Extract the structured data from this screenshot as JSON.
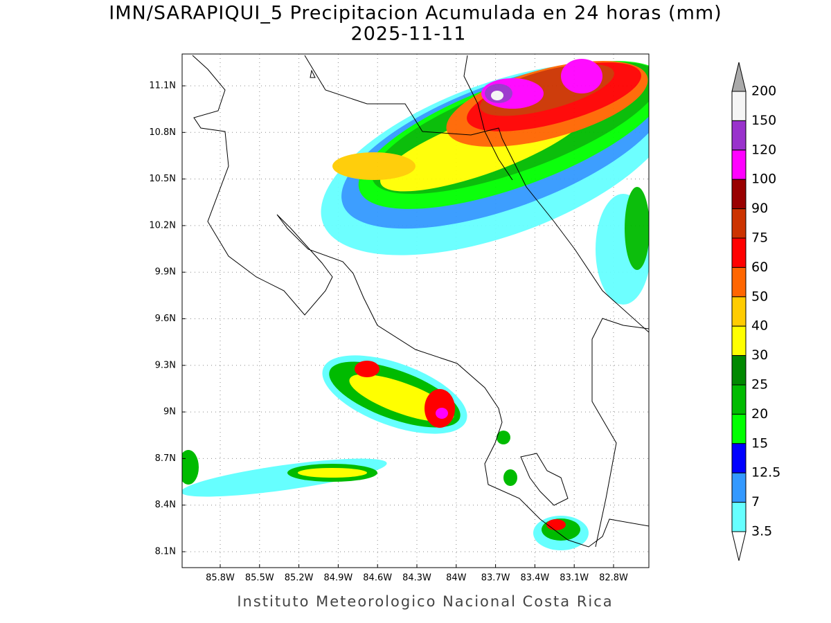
{
  "title": "IMN/SARAPIQUI_5 Precipitacion Acumulada en 24 horas (mm)",
  "subtitle": "2025-11-11",
  "map": {
    "lon_labels": [
      "85.8W",
      "85.5W",
      "85.2W",
      "84.9W",
      "84.6W",
      "84.3W",
      "84W",
      "83.7W",
      "83.4W",
      "83.1W",
      "82.8W"
    ],
    "lat_labels": [
      "11.1N",
      "10.8N",
      "10.5N",
      "10.2N",
      "9.9N",
      "9.6N",
      "9.3N",
      "9N",
      "8.7N",
      "8.4N",
      "8.1N"
    ]
  },
  "colorbar": {
    "levels": [
      200,
      150,
      120,
      100,
      90,
      75,
      60,
      50,
      40,
      30,
      25,
      20,
      15,
      12.5,
      7,
      3.5
    ],
    "colors": [
      "#f5f5f5",
      "#9932cc",
      "#ff00ff",
      "#990000",
      "#cc3300",
      "#ff0000",
      "#ff6600",
      "#ffcc00",
      "#ffff00",
      "#008800",
      "#00bb00",
      "#00ff00",
      "#0000ff",
      "#3399ff",
      "#66ffff"
    ],
    "over_color": "#aaaaaa"
  },
  "footer": "Instituto Meteorologico Nacional Costa Rica"
}
